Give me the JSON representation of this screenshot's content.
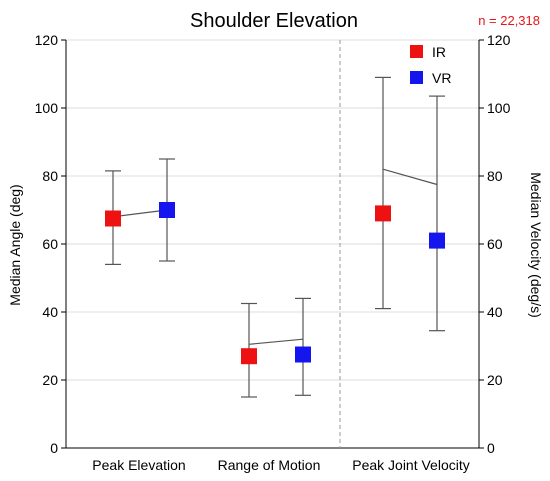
{
  "chart_data": {
    "type": "scatter",
    "title": "Shoulder Elevation",
    "note": "n = 22,318",
    "ylabel": "Median Angle (deg)",
    "y2label": "Median Velocity (deg/s)",
    "ylim": [
      0,
      120
    ],
    "y2lim": [
      0,
      120
    ],
    "yticks": [
      "0",
      "20",
      "40",
      "60",
      "80",
      "100",
      "120"
    ],
    "y2ticks": [
      "0",
      "20",
      "40",
      "60",
      "80",
      "100",
      "120"
    ],
    "categories": [
      "Peak Elevation",
      "Range of Motion",
      "Peak Joint Velocity"
    ],
    "grid": true,
    "legend_position": "top-right",
    "series": [
      {
        "name": "IR",
        "color": "#ee1111",
        "values": [
          67.5,
          27,
          69
        ],
        "lower": [
          54,
          15,
          41
        ],
        "upper": [
          81.5,
          42.5,
          109
        ]
      },
      {
        "name": "VR",
        "color": "#1515ee",
        "values": [
          70,
          27.5,
          61
        ],
        "lower": [
          55,
          15.5,
          34.5
        ],
        "upper": [
          85,
          44,
          103.5
        ]
      }
    ],
    "connectors": [
      68,
      30.5,
      82
    ],
    "connectors_end": [
      70,
      32,
      77.5
    ]
  }
}
